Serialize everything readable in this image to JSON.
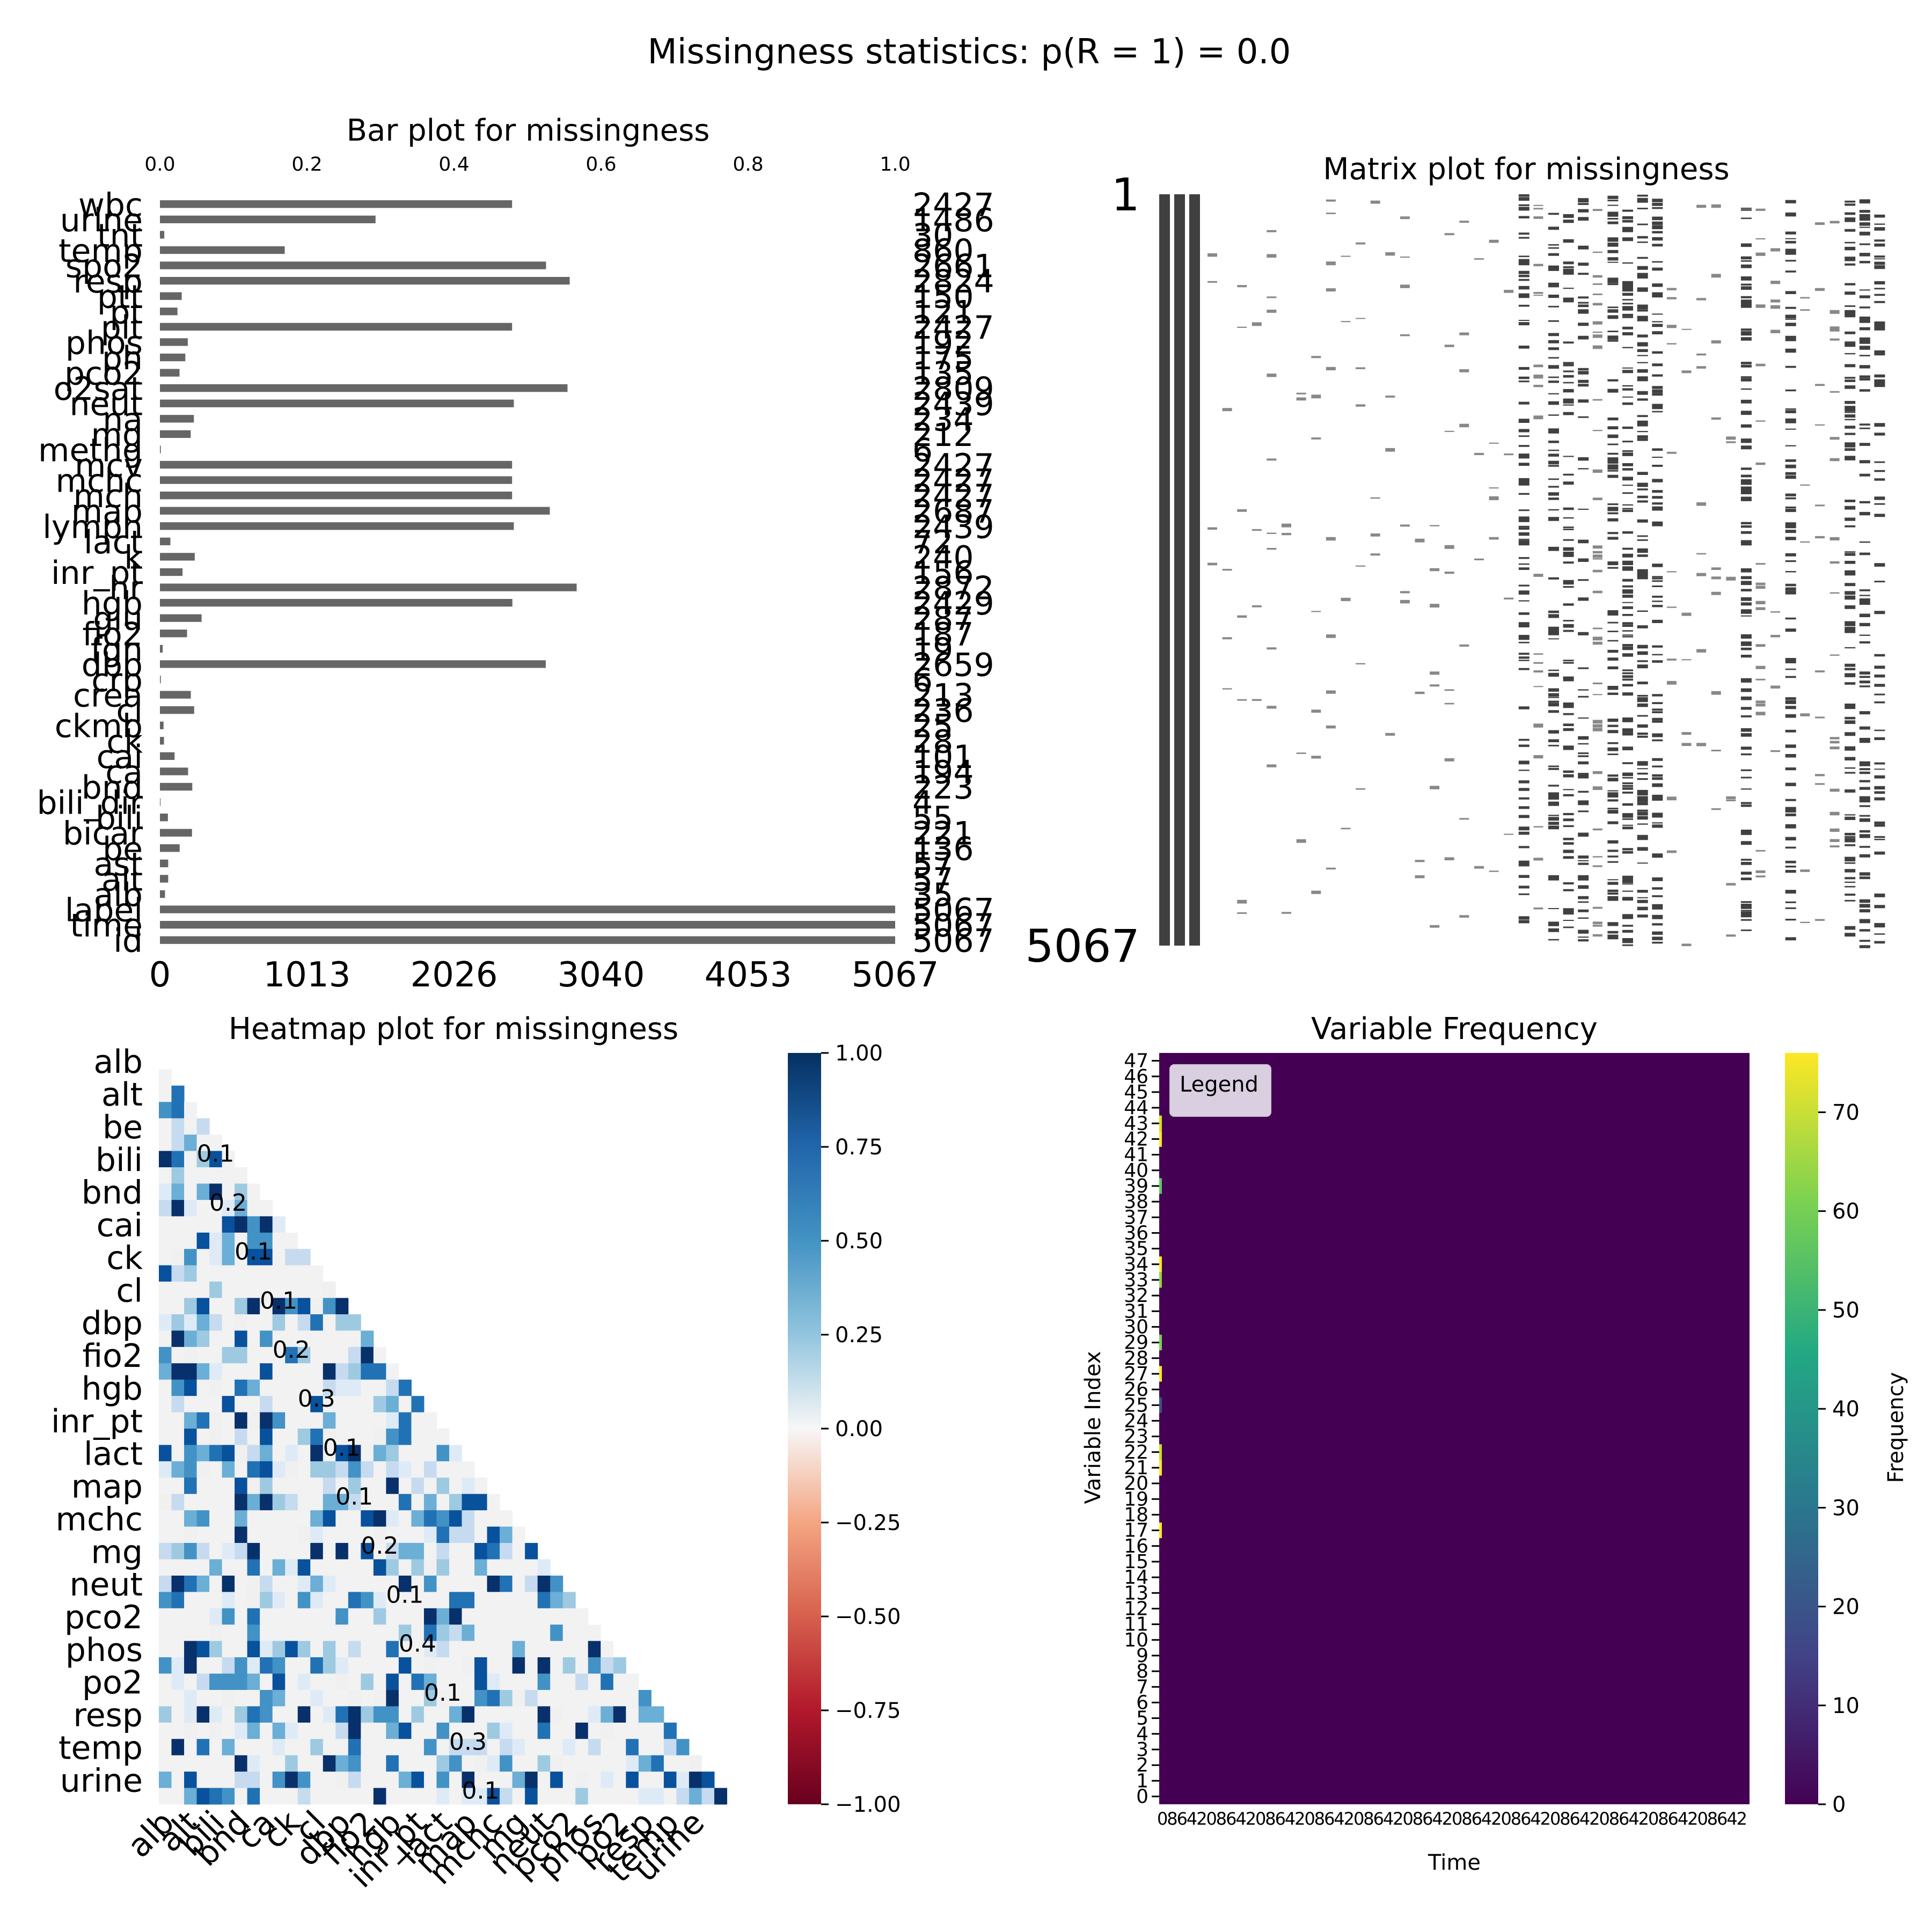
{
  "suptitle": "Missingness statistics: p(R = 1) = 0.0",
  "chart_data": [
    {
      "type": "bar",
      "orientation": "horizontal",
      "title": "Bar plot for missingness",
      "categories": [
        "wbc",
        "urine",
        "tnt",
        "temp",
        "spo2",
        "resp",
        "ptt",
        "pt",
        "plt",
        "phos",
        "ph",
        "pco2",
        "o2sat",
        "neut",
        "na",
        "mg",
        "methg",
        "mcv",
        "mchc",
        "mch",
        "map",
        "lymph",
        "lact",
        "k",
        "inr_pt",
        "hr",
        "hgb",
        "glu",
        "fio2",
        "fgn",
        "dbp",
        "crp",
        "crea",
        "cl",
        "ckmb",
        "ck",
        "cai",
        "ca",
        "bnd",
        "bili_dir",
        "bili",
        "bicar",
        "be",
        "ast",
        "alt",
        "alb",
        "label",
        "time",
        "id"
      ],
      "values": [
        2427,
        1486,
        30,
        860,
        2661,
        2824,
        150,
        121,
        2427,
        192,
        175,
        135,
        2809,
        2439,
        234,
        212,
        6,
        2427,
        2427,
        2427,
        2687,
        2439,
        72,
        240,
        156,
        2872,
        2429,
        287,
        187,
        19,
        2659,
        6,
        213,
        236,
        25,
        28,
        101,
        194,
        223,
        4,
        55,
        221,
        136,
        57,
        57,
        35,
        5067,
        5067,
        5067
      ],
      "top_axis_ticks": [
        "0.0",
        "0.2",
        "0.4",
        "0.6",
        "0.8",
        "1.0"
      ],
      "bottom_axis_ticks": [
        "0",
        "1013",
        "2026",
        "3040",
        "4053",
        "5067"
      ],
      "xlim": [
        0,
        5067
      ],
      "bar_color": "#666666"
    },
    {
      "type": "heatmap",
      "title": "Matrix plot for missingness",
      "y_labels": [
        "1",
        "5067"
      ],
      "columns": 49,
      "rows": 5067,
      "colors": {
        "present": "#404040",
        "missing": "#ffffff"
      },
      "full_columns": [
        "id",
        "time",
        "label"
      ]
    },
    {
      "type": "heatmap",
      "title": "Heatmap plot for missingness",
      "row_labels": [
        "alb",
        "alt",
        "be",
        "bili",
        "bnd",
        "cai",
        "ck",
        "cl",
        "dbp",
        "fio2",
        "hgb",
        "inr_pt",
        "lact",
        "map",
        "mchc",
        "mg",
        "neut",
        "pco2",
        "phos",
        "po2",
        "resp",
        "temp",
        "urine"
      ],
      "column_labels": [
        "alb",
        "alt",
        "bili",
        "bnd",
        "ca",
        "ck",
        "cl",
        "dbp",
        "fio2",
        "hgb",
        "inr_pt",
        "lact",
        "map",
        "mchc",
        "mg",
        "neut",
        "pco2",
        "phos",
        "po2",
        "resp",
        "temp",
        "urine"
      ],
      "colorbar_ticks": [
        "1.00",
        "0.75",
        "0.50",
        "0.25",
        "0.00",
        "−0.25",
        "−0.50",
        "−0.75",
        "−1.00"
      ],
      "vmin": -1,
      "vmax": 1,
      "cmap": "RdBu",
      "sample_cell_labels": [
        "0.1",
        "0.2",
        "0.1",
        "0.1",
        "0.2",
        "0.3",
        "0.1",
        "0.1",
        "0.2",
        "0.1",
        "0.4",
        "0.1",
        "0.3",
        "0.1"
      ]
    },
    {
      "type": "heatmap",
      "title": "Variable Frequency",
      "xlabel": "Time",
      "ylabel": "Variable Index",
      "y_ticks": [
        "0",
        "1",
        "2",
        "3",
        "4",
        "5",
        "6",
        "7",
        "8",
        "9",
        "10",
        "11",
        "12",
        "13",
        "14",
        "15",
        "16",
        "17",
        "18",
        "19",
        "20",
        "21",
        "22",
        "23",
        "24",
        "25",
        "26",
        "27",
        "28",
        "29",
        "30",
        "31",
        "32",
        "33",
        "34",
        "35",
        "36",
        "37",
        "38",
        "39",
        "40",
        "41",
        "42",
        "43",
        "44",
        "45",
        "46",
        "47"
      ],
      "legend_label": "Legend",
      "colorbar_label": "Frequency",
      "colorbar_ticks": [
        "0",
        "10",
        "20",
        "30",
        "40",
        "50",
        "60",
        "70"
      ],
      "vmax": 76,
      "cmap": "viridis",
      "background_color": "#440154"
    }
  ]
}
